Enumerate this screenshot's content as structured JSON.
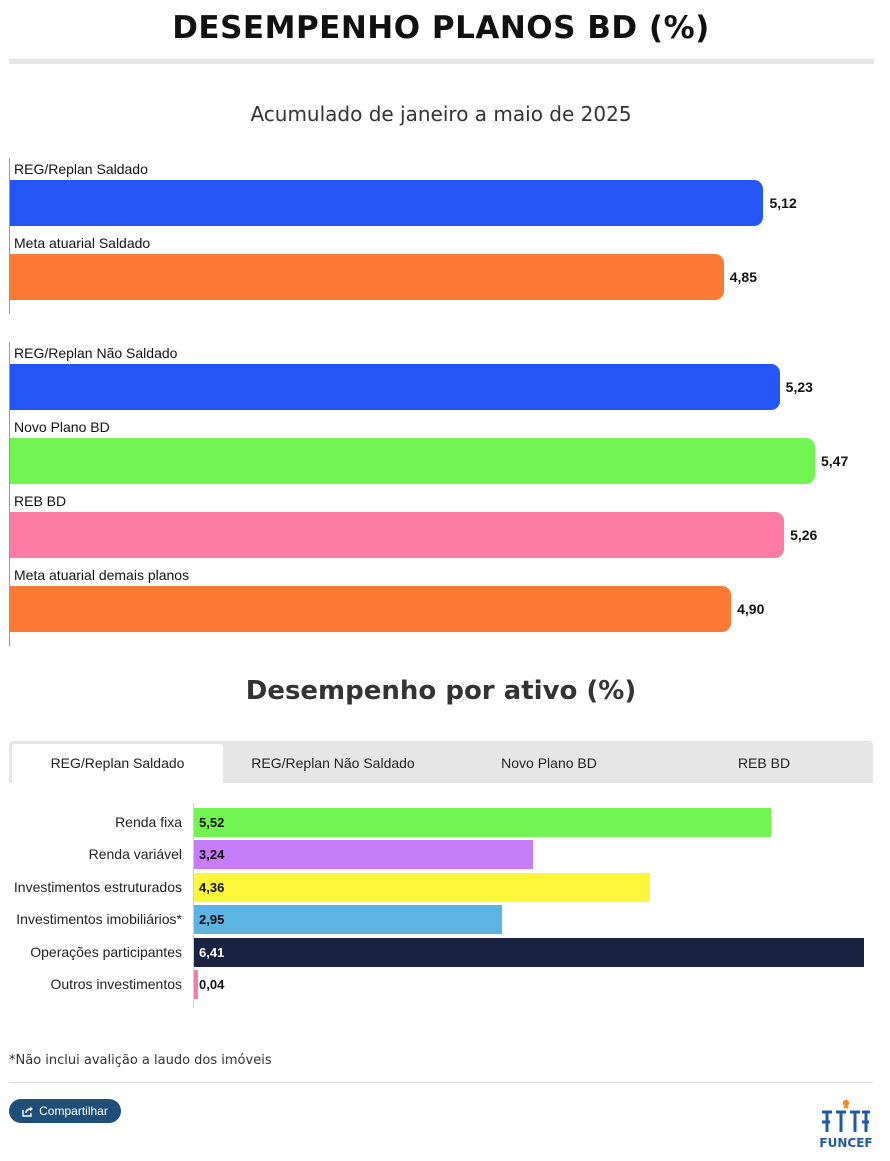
{
  "title": "DESEMPENHO PLANOS BD (%)",
  "chart_data": [
    {
      "type": "bar",
      "orientation": "horizontal",
      "title": "Acumulado de janeiro a maio de 2025",
      "groups": [
        {
          "bars": [
            {
              "label": "REG/Replan Saldado",
              "value": 5.12,
              "display": "5,12",
              "color": "#2457f5"
            },
            {
              "label": "Meta atuarial Saldado",
              "value": 4.85,
              "display": "4,85",
              "color": "#fd7a34"
            }
          ]
        },
        {
          "bars": [
            {
              "label": "REG/Replan Não Saldado",
              "value": 5.23,
              "display": "5,23",
              "color": "#2457f5"
            },
            {
              "label": "Novo Plano BD",
              "value": 5.47,
              "display": "5,47",
              "color": "#72f552"
            },
            {
              "label": "REB BD",
              "value": 5.26,
              "display": "5,26",
              "color": "#fd7aa4"
            },
            {
              "label": "Meta atuarial demais planos",
              "value": 4.9,
              "display": "4,90",
              "color": "#fd7a34"
            }
          ]
        }
      ]
    },
    {
      "type": "bar",
      "orientation": "horizontal",
      "title": "Desempenho por ativo (%)",
      "categories": [
        "Renda fixa",
        "Renda variável",
        "Investimentos estruturados",
        "Investimentos imobiliários*",
        "Operações participantes",
        "Outros investimentos"
      ],
      "values": [
        5.52,
        3.24,
        4.36,
        2.95,
        6.41,
        0.04
      ],
      "display": [
        "5,52",
        "3,24",
        "4,36",
        "2,95",
        "6,41",
        "0,04"
      ],
      "colors": [
        "#72f552",
        "#c57ef8",
        "#fdf73c",
        "#5db4e4",
        "#1a2341",
        "#f27eac"
      ]
    }
  ],
  "tabs": [
    "REG/Replan Saldado",
    "REG/Replan Não Saldado",
    "Novo Plano BD",
    "REB BD"
  ],
  "active_tab": "REG/Replan Saldado",
  "footnote": "*Não inclui avalição a laudo dos imóveis",
  "share_label": "Compartilhar",
  "share_icon": "share-icon",
  "logo_text": "FUNCEF",
  "colors": {
    "share_button": "#1f4e79",
    "logo": "#1f5aa6",
    "logo_accent": "#f08a24"
  }
}
